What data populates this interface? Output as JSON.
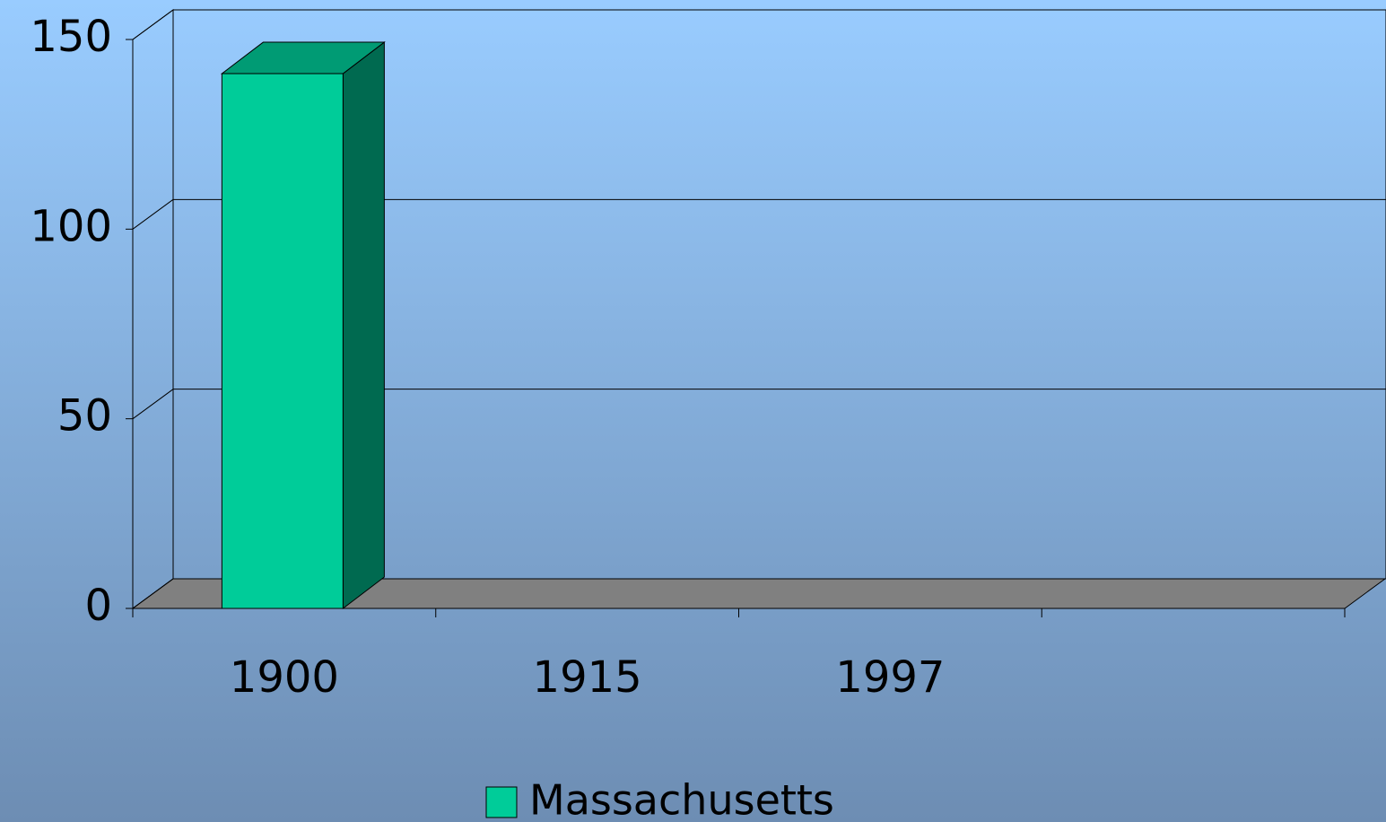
{
  "chart_data": {
    "type": "bar3d",
    "categories": [
      "1900",
      "1915",
      "1997",
      null
    ],
    "series": [
      {
        "name": "Massachusetts",
        "color": "#00cc99",
        "values": [
          141,
          null,
          null,
          null
        ]
      }
    ],
    "ylim": [
      0,
      150
    ],
    "yticks": [
      0,
      50,
      100,
      150
    ],
    "grid": true,
    "legend": "bottom"
  }
}
